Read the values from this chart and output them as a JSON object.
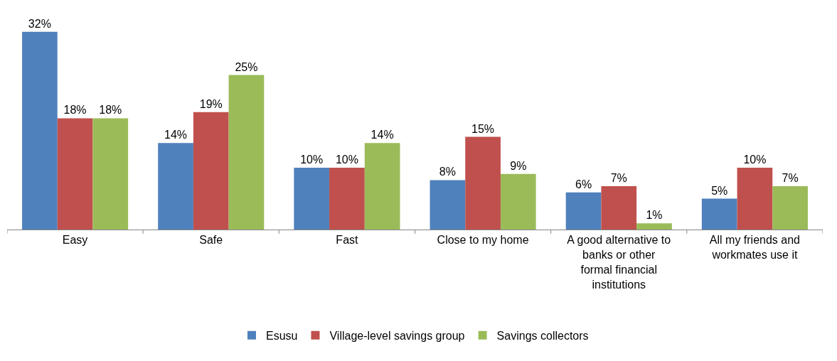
{
  "chart_data": {
    "type": "bar",
    "categories": [
      "Easy",
      "Safe",
      "Fast",
      "Close to my home",
      "A good alternative to\nbanks or other\nformal financial\ninstitutions",
      "All my friends and\nworkmates use it"
    ],
    "series": [
      {
        "name": "Esusu",
        "color": "#4f81bd",
        "values": [
          32,
          14,
          10,
          8,
          6,
          5
        ],
        "value_labels": [
          "32%",
          "14%",
          "10%",
          "8%",
          "6%",
          "5%"
        ]
      },
      {
        "name": "Village-level savings group",
        "color": "#c0504d",
        "values": [
          18,
          19,
          10,
          15,
          7,
          10
        ],
        "value_labels": [
          "18%",
          "19%",
          "10%",
          "15%",
          "7%",
          "10%"
        ]
      },
      {
        "name": "Savings collectors",
        "color": "#9bbb59",
        "values": [
          18,
          25,
          14,
          9,
          1,
          7
        ],
        "value_labels": [
          "18%",
          "25%",
          "14%",
          "9%",
          "1%",
          "7%"
        ]
      }
    ],
    "tick_labels": "x",
    "legend": "bottom"
  }
}
